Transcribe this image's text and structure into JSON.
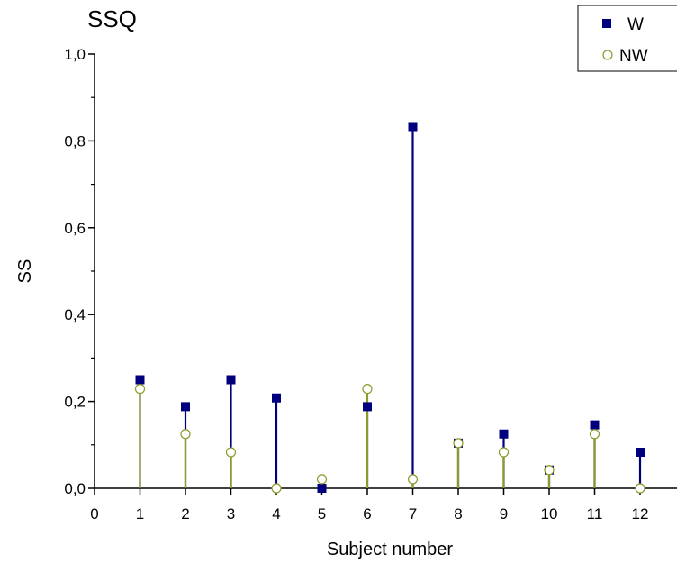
{
  "chart_data": {
    "type": "scatter",
    "title": "SSQ",
    "xlabel": "Subject number",
    "ylabel": "SS",
    "xlim": [
      0,
      12
    ],
    "ylim": [
      0,
      1.0
    ],
    "x_ticks": [
      "0",
      "1",
      "2",
      "3",
      "4",
      "5",
      "6",
      "7",
      "8",
      "9",
      "10",
      "11",
      "12"
    ],
    "y_ticks": [
      "0,0",
      "0,2",
      "0,4",
      "0,6",
      "0,8",
      "1,0"
    ],
    "x": [
      1,
      2,
      3,
      4,
      5,
      6,
      7,
      8,
      9,
      10,
      11,
      12
    ],
    "grid": false,
    "legend_position": "top-right",
    "drop_lines": true,
    "series": [
      {
        "name": "W",
        "marker": "filled-square",
        "color": "#00007f",
        "values": [
          0.25,
          0.188,
          0.25,
          0.208,
          0.0,
          0.188,
          0.833,
          0.104,
          0.125,
          0.042,
          0.146,
          0.083
        ]
      },
      {
        "name": "NW",
        "marker": "open-circle",
        "color": "#8c9a2a",
        "values": [
          0.229,
          0.125,
          0.083,
          0.0,
          0.021,
          0.229,
          0.021,
          0.104,
          0.083,
          0.042,
          0.125,
          0.0
        ]
      }
    ]
  }
}
